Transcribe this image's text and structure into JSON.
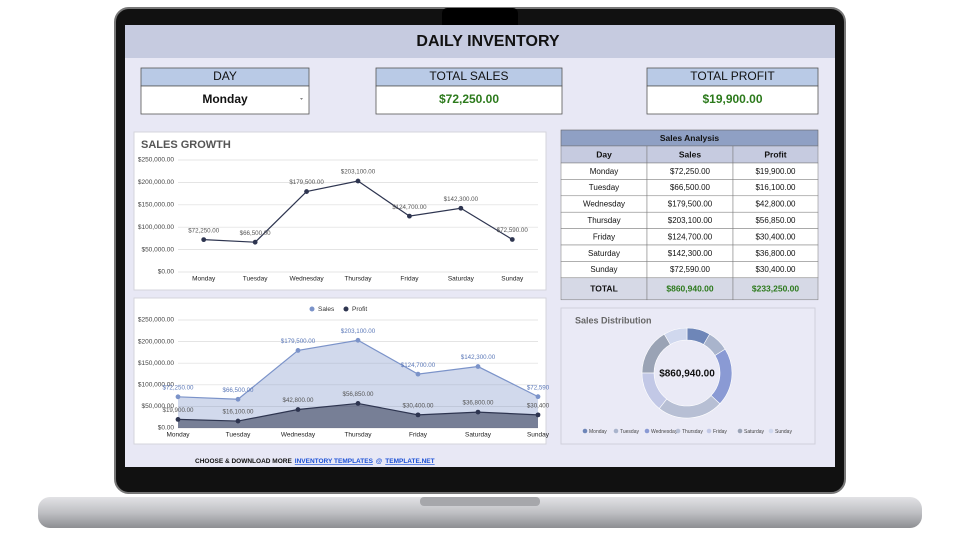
{
  "header": {
    "title": "DAILY INVENTORY"
  },
  "cards": [
    {
      "label": "DAY",
      "value": "Monday"
    },
    {
      "label": "TOTAL SALES",
      "value": "$72,250.00"
    },
    {
      "label": "TOTAL PROFIT",
      "value": "$19,900.00"
    }
  ],
  "table": {
    "title": "Sales Analysis",
    "columns": [
      "Day",
      "Sales",
      "Profit"
    ],
    "rows": [
      [
        "Monday",
        "$72,250.00",
        "$19,900.00"
      ],
      [
        "Tuesday",
        "$66,500.00",
        "$16,100.00"
      ],
      [
        "Wednesday",
        "$179,500.00",
        "$42,800.00"
      ],
      [
        "Thursday",
        "$203,100.00",
        "$56,850.00"
      ],
      [
        "Friday",
        "$124,700.00",
        "$30,400.00"
      ],
      [
        "Saturday",
        "$142,300.00",
        "$36,800.00"
      ],
      [
        "Sunday",
        "$72,590.00",
        "$30,400.00"
      ]
    ],
    "total": [
      "TOTAL",
      "$860,940.00",
      "$233,250.00"
    ]
  },
  "chart_data": [
    {
      "type": "line",
      "title": "SALES GROWTH",
      "categories": [
        "Monday",
        "Tuesday",
        "Wednesday",
        "Thursday",
        "Friday",
        "Saturday",
        "Sunday"
      ],
      "values": [
        72250,
        66500,
        179500,
        203100,
        124700,
        142300,
        72590
      ],
      "value_labels": [
        "$72,250.00",
        "$66,500.00",
        "$179,500.00",
        "$203,100.00",
        "$124,700.00",
        "$142,300.00",
        "$72,590.00"
      ],
      "color": "#2e3550",
      "ylim": [
        0,
        250000
      ],
      "yticks": [
        {
          "value": 0,
          "label": "$0.00"
        },
        {
          "value": 50000,
          "label": "$50,000.00"
        },
        {
          "value": 100000,
          "label": "$100,000.00"
        },
        {
          "value": 150000,
          "label": "$150,000.00"
        },
        {
          "value": 200000,
          "label": "$200,000.00"
        },
        {
          "value": 250000,
          "label": "$250,000.00"
        }
      ],
      "grid": true
    },
    {
      "type": "area",
      "categories": [
        "Monday",
        "Tuesday",
        "Wednesday",
        "Thursday",
        "Friday",
        "Saturday",
        "Sunday"
      ],
      "series": [
        {
          "name": "Sales",
          "color": "#7b93c9",
          "values": [
            72250,
            66500,
            179500,
            203100,
            124700,
            142300,
            72590
          ],
          "value_labels": [
            "$72,250.00",
            "$66,500.00",
            "$179,500.00",
            "$203,100.00",
            "$124,700.00",
            "$142,300.00",
            "$72,590"
          ]
        },
        {
          "name": "Profit",
          "color": "#2e3550",
          "values": [
            19900,
            16100,
            42800,
            56850,
            30400,
            36800,
            30400
          ],
          "value_labels": [
            "$19,900.00",
            "$16,100.00",
            "$42,800.00",
            "$56,850.00",
            "$30,400.00",
            "$36,800.00",
            "$30,400"
          ]
        }
      ],
      "ylim": [
        0,
        250000
      ],
      "yticks": [
        {
          "value": 0,
          "label": "$0.00"
        },
        {
          "value": 50000,
          "label": "$50,000.00"
        },
        {
          "value": 100000,
          "label": "$100,000.00"
        },
        {
          "value": 150000,
          "label": "$150,000.00"
        },
        {
          "value": 200000,
          "label": "$200,000.00"
        },
        {
          "value": 250000,
          "label": "$250,000.00"
        }
      ],
      "grid": true,
      "legend": "top"
    },
    {
      "type": "donut",
      "title": "Sales Distribution",
      "center_label": "$860,940.00",
      "categories": [
        "Monday",
        "Tuesday",
        "Wednesday",
        "Thursday",
        "Friday",
        "Saturday",
        "Sunday"
      ],
      "values": [
        72250,
        66500,
        179500,
        203100,
        124700,
        142300,
        72590
      ],
      "colors": [
        "#6e86b8",
        "#a9b4cc",
        "#8a9ad4",
        "#b7bfd4",
        "#c2c8e6",
        "#9aa3b5",
        "#d0d8ee"
      ]
    }
  ],
  "footer": {
    "text": "CHOOSE & DOWNLOAD MORE",
    "link": "INVENTORY TEMPLATES",
    "sep": "@",
    "site": "TEMPLATE.NET"
  }
}
